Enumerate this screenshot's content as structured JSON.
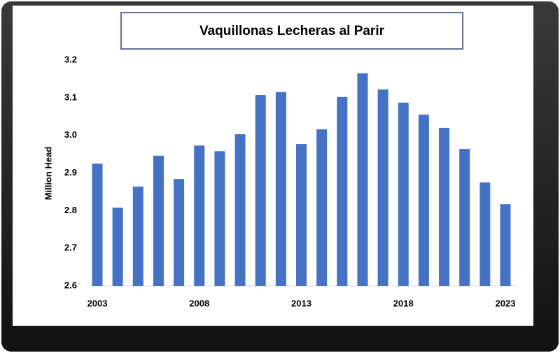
{
  "chart_data": {
    "type": "bar",
    "title": "Vaquillonas Lecheras al Parir",
    "y_label": "Million Head",
    "categories": [
      "2003",
      null,
      null,
      null,
      null,
      "2008",
      null,
      null,
      null,
      null,
      "2013",
      null,
      null,
      null,
      null,
      "2018",
      null,
      null,
      null,
      null,
      "2023"
    ],
    "values": [
      2.925,
      2.808,
      2.864,
      2.946,
      2.884,
      2.973,
      2.958,
      3.003,
      3.107,
      3.115,
      2.977,
      3.016,
      3.102,
      3.165,
      3.122,
      3.087,
      3.055,
      3.02,
      2.964,
      2.875,
      2.817
    ],
    "color": "#4472c4",
    "ylim": [
      2.6,
      3.2
    ],
    "yticks": [
      2.6,
      2.7,
      2.8,
      2.9,
      {
        "value": 3,
        "label": "3.0"
      },
      3.1,
      3.2
    ],
    "grid": false
  }
}
